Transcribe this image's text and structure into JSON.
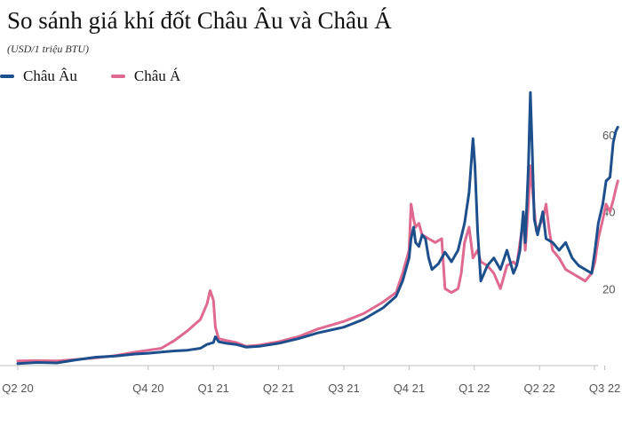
{
  "chart_data": {
    "type": "line",
    "title": "So sánh giá khí đốt Châu Âu và Châu Á",
    "subtitle": "(USD/1 triệu BTU)",
    "xlabel": "",
    "ylabel": "",
    "ylim": [
      0,
      72
    ],
    "y_ticks": [
      20,
      40,
      60
    ],
    "y_tick_labels": [
      "20",
      "40",
      "60"
    ],
    "x_tick_positions": [
      0,
      2,
      3,
      4,
      5,
      6,
      7,
      8,
      9
    ],
    "x_tick_labels": [
      "Q2 20",
      "Q4 20",
      "Q1 21",
      "Q2 21",
      "Q3 21",
      "Q4 21",
      "Q1 22",
      "Q2 22",
      "Q3 22"
    ],
    "xlim": [
      0,
      9.2
    ],
    "grid": false,
    "legend_position": "top-left",
    "colors": {
      "europe": "#1c4f8c",
      "asia": "#e0698f"
    },
    "series": [
      {
        "name": "Châu Âu",
        "color": "#1c4f8c",
        "points": [
          [
            0.0,
            0.5
          ],
          [
            0.3,
            0.8
          ],
          [
            0.6,
            0.7
          ],
          [
            0.9,
            1.5
          ],
          [
            1.2,
            2.2
          ],
          [
            1.5,
            2.5
          ],
          [
            1.8,
            3.0
          ],
          [
            2.0,
            3.2
          ],
          [
            2.2,
            3.5
          ],
          [
            2.4,
            3.8
          ],
          [
            2.6,
            4.0
          ],
          [
            2.8,
            4.5
          ],
          [
            2.9,
            5.5
          ],
          [
            3.0,
            6.0
          ],
          [
            3.03,
            7.5
          ],
          [
            3.08,
            6.2
          ],
          [
            3.2,
            5.8
          ],
          [
            3.35,
            5.5
          ],
          [
            3.5,
            4.8
          ],
          [
            3.7,
            5.0
          ],
          [
            4.0,
            5.8
          ],
          [
            4.3,
            7.0
          ],
          [
            4.6,
            8.5
          ],
          [
            5.0,
            10.0
          ],
          [
            5.3,
            12.0
          ],
          [
            5.6,
            15.0
          ],
          [
            5.8,
            18.0
          ],
          [
            5.9,
            22.0
          ],
          [
            6.0,
            28.0
          ],
          [
            6.03,
            33.0
          ],
          [
            6.07,
            36.0
          ],
          [
            6.1,
            32.0
          ],
          [
            6.15,
            31.0
          ],
          [
            6.2,
            34.0
          ],
          [
            6.25,
            33.0
          ],
          [
            6.3,
            28.0
          ],
          [
            6.35,
            25.0
          ],
          [
            6.45,
            26.5
          ],
          [
            6.55,
            29.5
          ],
          [
            6.65,
            27.0
          ],
          [
            6.75,
            30.0
          ],
          [
            6.85,
            37.0
          ],
          [
            6.92,
            45.0
          ],
          [
            6.98,
            59.0
          ],
          [
            7.01,
            52.0
          ],
          [
            7.05,
            35.0
          ],
          [
            7.1,
            22.0
          ],
          [
            7.2,
            26.0
          ],
          [
            7.3,
            28.0
          ],
          [
            7.4,
            25.0
          ],
          [
            7.5,
            30.0
          ],
          [
            7.55,
            27.0
          ],
          [
            7.6,
            24.0
          ],
          [
            7.65,
            26.0
          ],
          [
            7.7,
            30.0
          ],
          [
            7.75,
            40.0
          ],
          [
            7.78,
            32.0
          ],
          [
            7.83,
            52.0
          ],
          [
            7.86,
            71.0
          ],
          [
            7.89,
            55.0
          ],
          [
            7.92,
            38.0
          ],
          [
            7.97,
            34.0
          ],
          [
            8.05,
            40.0
          ],
          [
            8.1,
            33.0
          ],
          [
            8.2,
            32.0
          ],
          [
            8.3,
            30.0
          ],
          [
            8.4,
            32.0
          ],
          [
            8.5,
            28.0
          ],
          [
            8.6,
            26.0
          ],
          [
            8.7,
            25.0
          ],
          [
            8.8,
            24.0
          ],
          [
            8.85,
            30.0
          ],
          [
            8.9,
            37.0
          ],
          [
            8.97,
            42.0
          ],
          [
            9.02,
            48.0
          ],
          [
            9.08,
            49.0
          ],
          [
            9.13,
            58.0
          ],
          [
            9.17,
            61.0
          ],
          [
            9.2,
            62.0
          ]
        ]
      },
      {
        "name": "Châu Á",
        "color": "#e0698f",
        "points": [
          [
            0.0,
            1.2
          ],
          [
            0.3,
            1.3
          ],
          [
            0.6,
            1.2
          ],
          [
            0.9,
            1.6
          ],
          [
            1.2,
            2.0
          ],
          [
            1.5,
            2.6
          ],
          [
            1.8,
            3.5
          ],
          [
            2.0,
            4.0
          ],
          [
            2.2,
            4.5
          ],
          [
            2.4,
            6.5
          ],
          [
            2.6,
            9.0
          ],
          [
            2.8,
            12.0
          ],
          [
            2.9,
            16.0
          ],
          [
            2.95,
            19.5
          ],
          [
            3.0,
            17.0
          ],
          [
            3.03,
            10.0
          ],
          [
            3.08,
            7.0
          ],
          [
            3.2,
            6.5
          ],
          [
            3.35,
            6.0
          ],
          [
            3.5,
            5.0
          ],
          [
            3.7,
            5.3
          ],
          [
            4.0,
            6.2
          ],
          [
            4.3,
            7.5
          ],
          [
            4.6,
            9.5
          ],
          [
            5.0,
            11.5
          ],
          [
            5.3,
            13.5
          ],
          [
            5.6,
            16.5
          ],
          [
            5.8,
            19.0
          ],
          [
            5.9,
            24.0
          ],
          [
            6.0,
            30.0
          ],
          [
            6.03,
            42.0
          ],
          [
            6.07,
            38.0
          ],
          [
            6.1,
            36.0
          ],
          [
            6.15,
            37.0
          ],
          [
            6.2,
            34.0
          ],
          [
            6.3,
            33.0
          ],
          [
            6.4,
            32.0
          ],
          [
            6.5,
            33.0
          ],
          [
            6.55,
            20.0
          ],
          [
            6.65,
            19.0
          ],
          [
            6.75,
            20.0
          ],
          [
            6.8,
            24.0
          ],
          [
            6.85,
            32.0
          ],
          [
            6.92,
            36.0
          ],
          [
            6.98,
            28.0
          ],
          [
            7.05,
            30.0
          ],
          [
            7.1,
            27.0
          ],
          [
            7.2,
            26.0
          ],
          [
            7.3,
            24.0
          ],
          [
            7.4,
            20.0
          ],
          [
            7.5,
            26.0
          ],
          [
            7.6,
            27.0
          ],
          [
            7.65,
            26.0
          ],
          [
            7.7,
            32.0
          ],
          [
            7.75,
            38.0
          ],
          [
            7.78,
            30.0
          ],
          [
            7.83,
            42.0
          ],
          [
            7.86,
            52.0
          ],
          [
            7.89,
            46.0
          ],
          [
            7.95,
            35.0
          ],
          [
            8.05,
            38.0
          ],
          [
            8.1,
            42.0
          ],
          [
            8.15,
            35.0
          ],
          [
            8.2,
            30.0
          ],
          [
            8.3,
            28.0
          ],
          [
            8.4,
            25.0
          ],
          [
            8.5,
            24.0
          ],
          [
            8.6,
            23.0
          ],
          [
            8.7,
            22.0
          ],
          [
            8.8,
            24.0
          ],
          [
            8.85,
            27.0
          ],
          [
            8.9,
            33.0
          ],
          [
            8.97,
            38.0
          ],
          [
            9.02,
            42.0
          ],
          [
            9.08,
            40.0
          ],
          [
            9.13,
            43.0
          ],
          [
            9.17,
            46.0
          ],
          [
            9.2,
            48.0
          ]
        ]
      }
    ]
  }
}
